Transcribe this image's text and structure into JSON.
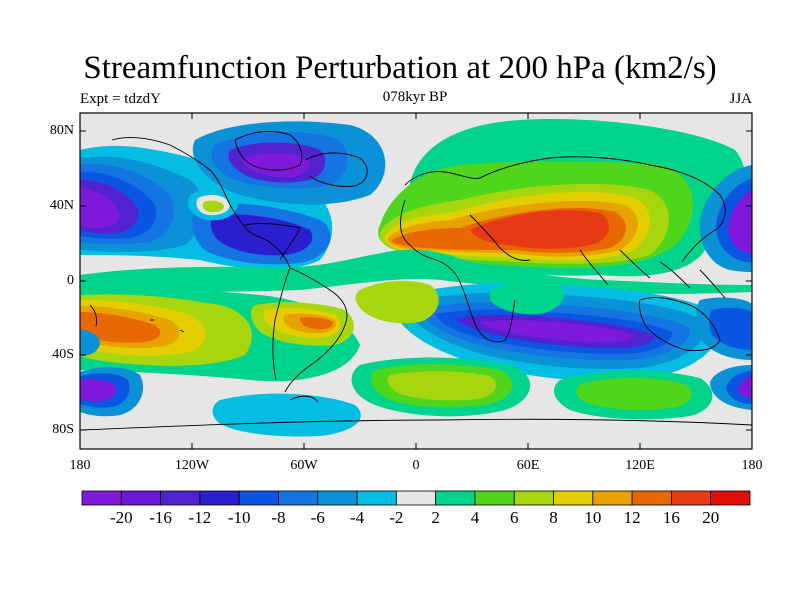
{
  "title": "Streamfunction Perturbation at 200 hPa (km2/s)",
  "subtitle_left": "Expt = tdzdY",
  "subtitle_center": "078kyr BP",
  "subtitle_right": "JJA",
  "lat_labels": [
    "80N",
    "40N",
    "0",
    "40S",
    "80S"
  ],
  "lon_labels": [
    "180",
    "120W",
    "60W",
    "0",
    "60E",
    "120E",
    "180"
  ],
  "colorbar": {
    "labels": [
      "-20",
      "-16",
      "-12",
      "-10",
      "-8",
      "-6",
      "-4",
      "-2",
      "2",
      "4",
      "6",
      "8",
      "10",
      "12",
      "16",
      "20"
    ],
    "colors": [
      "#7f19dc",
      "#6a1ad6",
      "#5023cf",
      "#2b20d0",
      "#0a55e1",
      "#1474e2",
      "#0b92d6",
      "#05bde3",
      "#e6e6e6",
      "#00d38a",
      "#4fd51c",
      "#a7d60f",
      "#e3cf00",
      "#e8a200",
      "#e76800",
      "#e73a14",
      "#e00d06"
    ]
  },
  "map": {
    "background": "#e6e6e6",
    "coastline_color": "#000000"
  }
}
